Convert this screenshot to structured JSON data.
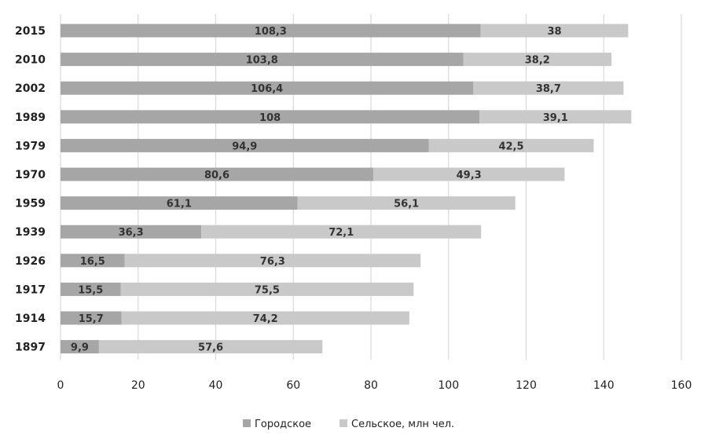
{
  "chart_data": {
    "type": "bar",
    "orientation": "horizontal",
    "stacked": true,
    "categories": [
      "2015",
      "2010",
      "2002",
      "1989",
      "1979",
      "1970",
      "1959",
      "1939",
      "1926",
      "1917",
      "1914",
      "1897"
    ],
    "series": [
      {
        "name": "Городское",
        "color": "#a6a6a6",
        "values": [
          108.3,
          103.8,
          106.4,
          108,
          94.9,
          80.6,
          61.1,
          36.3,
          16.5,
          15.5,
          15.7,
          9.9
        ],
        "labels": [
          "108,3",
          "103,8",
          "106,4",
          "108",
          "94,9",
          "80,6",
          "61,1",
          "36,3",
          "16,5",
          "15,5",
          "15,7",
          "9,9"
        ]
      },
      {
        "name": "Сельское, млн чел.",
        "color": "#c9c9c9",
        "values": [
          38,
          38.2,
          38.7,
          39.1,
          42.5,
          49.3,
          56.1,
          72.1,
          76.3,
          75.5,
          74.2,
          57.6
        ],
        "labels": [
          "38",
          "38,2",
          "38,7",
          "39,1",
          "42,5",
          "49,3",
          "56,1",
          "72,1",
          "76,3",
          "75,5",
          "74,2",
          "57,6"
        ]
      }
    ],
    "xlim": [
      0,
      160
    ],
    "x_ticks": [
      "0",
      "20",
      "40",
      "60",
      "80",
      "100",
      "120",
      "140",
      "160"
    ],
    "grid": true,
    "legend_position": "bottom",
    "title": "",
    "xlabel": "",
    "ylabel": ""
  }
}
